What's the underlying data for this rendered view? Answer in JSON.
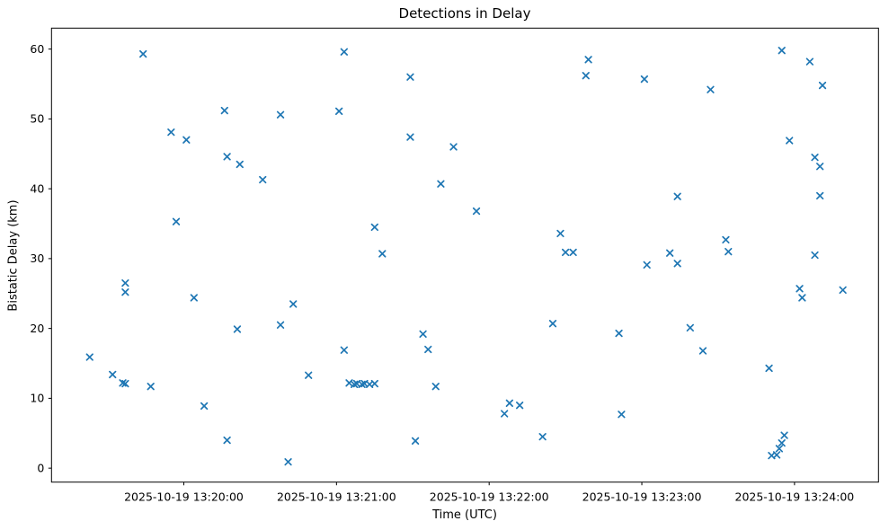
{
  "chart_data": {
    "type": "scatter",
    "title": "Detections in Delay",
    "xlabel": "Time (UTC)",
    "ylabel": "Bistatic Delay (km)",
    "date": "2025-10-19",
    "marker": {
      "shape": "x",
      "color": "#1f77b4"
    },
    "grid": false,
    "x_ticks": [
      {
        "time": "13:20:00",
        "label": "2025-10-19 13:20:00"
      },
      {
        "time": "13:21:00",
        "label": "2025-10-19 13:21:00"
      },
      {
        "time": "13:22:00",
        "label": "2025-10-19 13:22:00"
      },
      {
        "time": "13:23:00",
        "label": "2025-10-19 13:23:00"
      },
      {
        "time": "13:24:00",
        "label": "2025-10-19 13:24:00"
      }
    ],
    "y_ticks": [
      0,
      10,
      20,
      30,
      40,
      50,
      60
    ],
    "xlim": [
      "13:19:08",
      "13:24:33"
    ],
    "ylim": [
      -2,
      63
    ],
    "points": [
      [
        "13:19:23",
        15.9
      ],
      [
        "13:19:32",
        13.4
      ],
      [
        "13:19:36",
        12.2
      ],
      [
        "13:19:37",
        12.1
      ],
      [
        "13:19:37",
        26.5
      ],
      [
        "13:19:37",
        25.2
      ],
      [
        "13:19:44",
        59.3
      ],
      [
        "13:19:47",
        11.7
      ],
      [
        "13:19:55",
        48.1
      ],
      [
        "13:19:57",
        35.3
      ],
      [
        "13:20:01",
        47.0
      ],
      [
        "13:20:04",
        24.4
      ],
      [
        "13:20:08",
        8.9
      ],
      [
        "13:20:16",
        51.2
      ],
      [
        "13:20:17",
        44.6
      ],
      [
        "13:20:17",
        4.0
      ],
      [
        "13:20:21",
        19.9
      ],
      [
        "13:20:22",
        43.5
      ],
      [
        "13:20:31",
        41.3
      ],
      [
        "13:20:38",
        50.6
      ],
      [
        "13:20:38",
        20.5
      ],
      [
        "13:20:41",
        0.9
      ],
      [
        "13:20:43",
        23.5
      ],
      [
        "13:20:49",
        13.3
      ],
      [
        "13:21:01",
        51.1
      ],
      [
        "13:21:03",
        59.6
      ],
      [
        "13:21:03",
        16.9
      ],
      [
        "13:21:05",
        12.2
      ],
      [
        "13:21:07",
        12.0
      ],
      [
        "13:21:08",
        12.1
      ],
      [
        "13:21:10",
        12.0
      ],
      [
        "13:21:11",
        12.1
      ],
      [
        "13:21:13",
        12.0
      ],
      [
        "13:21:15",
        12.1
      ],
      [
        "13:21:15",
        34.5
      ],
      [
        "13:21:18",
        30.7
      ],
      [
        "13:21:29",
        56.0
      ],
      [
        "13:21:29",
        47.4
      ],
      [
        "13:21:31",
        3.9
      ],
      [
        "13:21:34",
        19.2
      ],
      [
        "13:21:36",
        17.0
      ],
      [
        "13:21:39",
        11.7
      ],
      [
        "13:21:41",
        40.7
      ],
      [
        "13:21:46",
        46.0
      ],
      [
        "13:21:55",
        36.8
      ],
      [
        "13:22:06",
        7.8
      ],
      [
        "13:22:08",
        9.3
      ],
      [
        "13:22:12",
        9.0
      ],
      [
        "13:22:21",
        4.5
      ],
      [
        "13:22:25",
        20.7
      ],
      [
        "13:22:28",
        33.6
      ],
      [
        "13:22:30",
        30.9
      ],
      [
        "13:22:33",
        30.9
      ],
      [
        "13:22:38",
        56.2
      ],
      [
        "13:22:39",
        58.5
      ],
      [
        "13:22:51",
        19.3
      ],
      [
        "13:22:52",
        7.7
      ],
      [
        "13:23:01",
        55.7
      ],
      [
        "13:23:02",
        29.1
      ],
      [
        "13:23:11",
        30.8
      ],
      [
        "13:23:14",
        29.3
      ],
      [
        "13:23:14",
        38.9
      ],
      [
        "13:23:19",
        20.1
      ],
      [
        "13:23:24",
        16.8
      ],
      [
        "13:23:27",
        54.2
      ],
      [
        "13:23:33",
        32.7
      ],
      [
        "13:23:34",
        31.0
      ],
      [
        "13:23:50",
        14.3
      ],
      [
        "13:23:51",
        1.8
      ],
      [
        "13:23:53",
        1.9
      ],
      [
        "13:23:54",
        2.8
      ],
      [
        "13:23:55",
        3.6
      ],
      [
        "13:23:56",
        4.7
      ],
      [
        "13:23:55",
        59.8
      ],
      [
        "13:23:58",
        46.9
      ],
      [
        "13:24:02",
        25.7
      ],
      [
        "13:24:03",
        24.4
      ],
      [
        "13:24:06",
        58.2
      ],
      [
        "13:24:08",
        30.5
      ],
      [
        "13:24:08",
        44.5
      ],
      [
        "13:24:10",
        43.2
      ],
      [
        "13:24:10",
        39.0
      ],
      [
        "13:24:11",
        54.8
      ],
      [
        "13:24:19",
        25.5
      ]
    ]
  }
}
